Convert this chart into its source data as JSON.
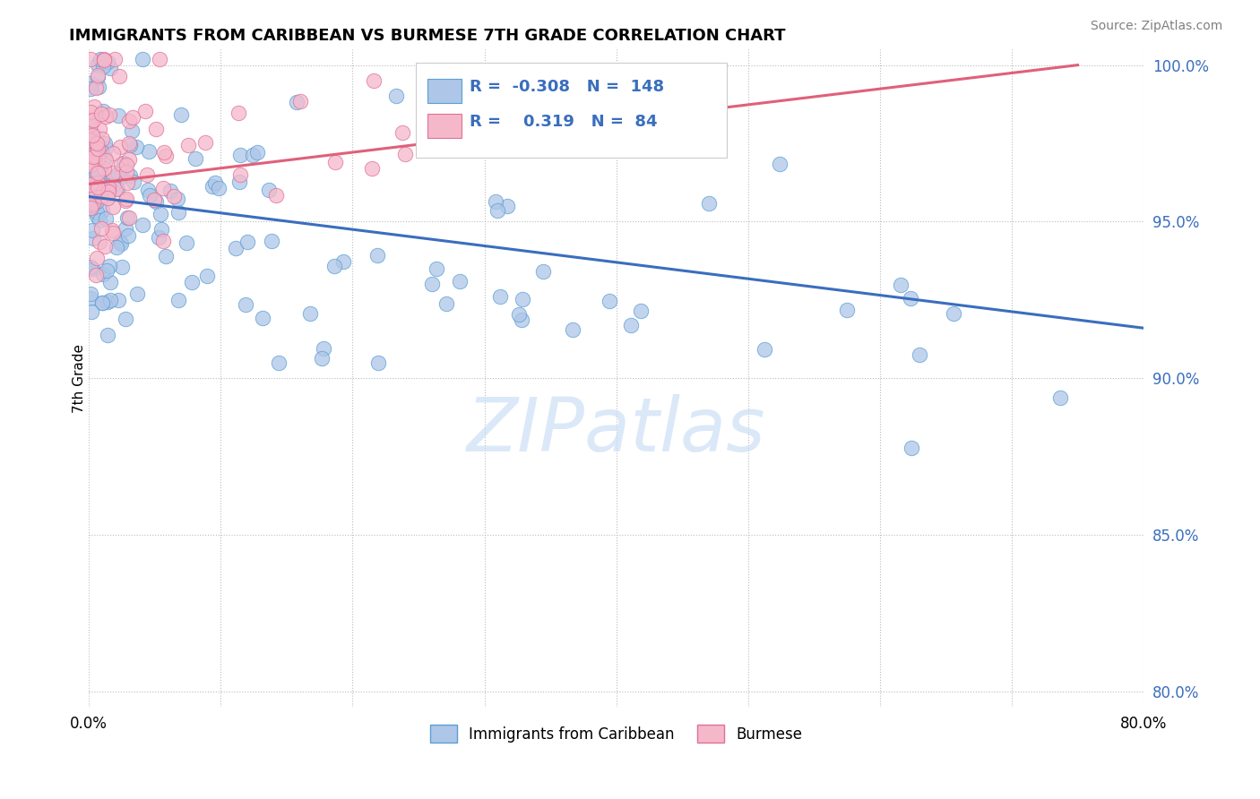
{
  "title": "IMMIGRANTS FROM CARIBBEAN VS BURMESE 7TH GRADE CORRELATION CHART",
  "source_text": "Source: ZipAtlas.com",
  "ylabel": "7th Grade",
  "xlim": [
    0.0,
    0.8
  ],
  "ylim": [
    0.795,
    1.005
  ],
  "yticks_right": [
    0.8,
    0.85,
    0.9,
    0.95,
    1.0
  ],
  "yticklabels_right": [
    "80.0%",
    "85.0%",
    "90.0%",
    "95.0%",
    "100.0%"
  ],
  "blue_color": "#aec6e8",
  "blue_edge": "#5a9fd4",
  "pink_color": "#f5b8cb",
  "pink_edge": "#e07095",
  "trendline_blue": "#3a6ebd",
  "trendline_pink": "#e0607a",
  "R_blue": -0.308,
  "N_blue": 148,
  "R_pink": 0.319,
  "N_pink": 84,
  "watermark": "ZIPatlas",
  "legend_label_blue": "Immigrants from Caribbean",
  "legend_label_pink": "Burmese",
  "blue_trendline_x0": 0.0,
  "blue_trendline_y0": 0.958,
  "blue_trendline_x1": 0.8,
  "blue_trendline_y1": 0.916,
  "pink_trendline_x0": 0.0,
  "pink_trendline_y0": 0.962,
  "pink_trendline_x1": 0.75,
  "pink_trendline_y1": 1.0
}
